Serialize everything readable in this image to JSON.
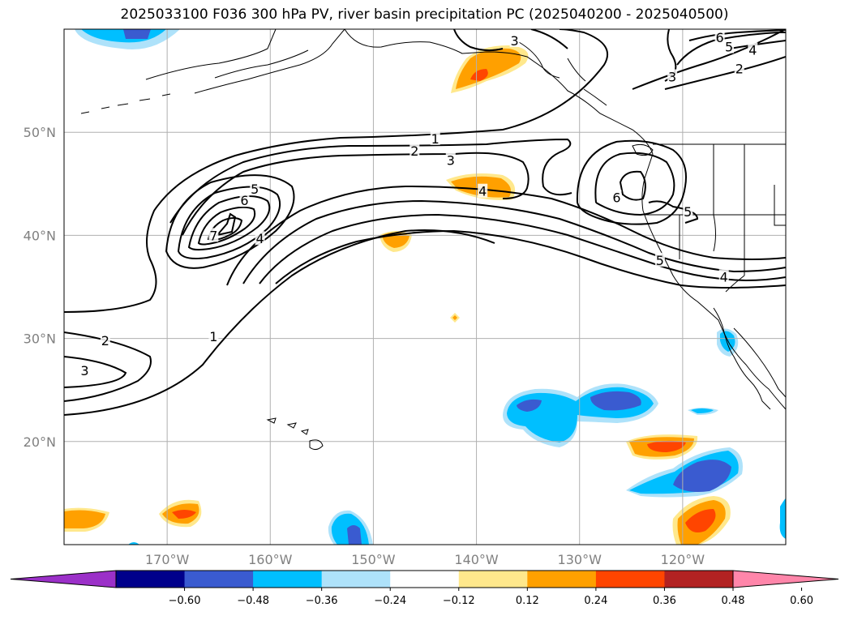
{
  "title": "2025033100 F036 300 hPa PV, river basin precipitation PC (2025040200 - 2025040500)",
  "map": {
    "lon_range": [
      -180,
      -110
    ],
    "lat_range": [
      10,
      60
    ],
    "lon_ticks": [
      {
        "value": -170,
        "label": "170°W"
      },
      {
        "value": -160,
        "label": "160°W"
      },
      {
        "value": -150,
        "label": "150°W"
      },
      {
        "value": -140,
        "label": "140°W"
      },
      {
        "value": -130,
        "label": "130°W"
      },
      {
        "value": -120,
        "label": "120°W"
      }
    ],
    "lat_ticks": [
      {
        "value": 20,
        "label": "20°N"
      },
      {
        "value": 30,
        "label": "30°N"
      },
      {
        "value": 40,
        "label": "40°N"
      },
      {
        "value": 50,
        "label": "50°N"
      }
    ],
    "grid": true
  },
  "colorbar": {
    "colors": [
      "#9b30c8",
      "#00008b",
      "#3a5bd0",
      "#00bfff",
      "#aee2fa",
      "#ffffff",
      "#ffe88c",
      "#ffa000",
      "#ff4500",
      "#b22222",
      "#ff86aa"
    ],
    "ticks": [
      "−0.60",
      "−0.48",
      "−0.36",
      "−0.24",
      "−0.12",
      "0.12",
      "0.24",
      "0.36",
      "0.48",
      "0.60"
    ],
    "extend": "both"
  },
  "contour_labels": [
    {
      "text": "1",
      "lon": -144,
      "lat": 49.4
    },
    {
      "text": "2",
      "lon": -146,
      "lat": 48.2
    },
    {
      "text": "3",
      "lon": -142.5,
      "lat": 47.3
    },
    {
      "text": "5",
      "lon": -161.5,
      "lat": 44.5
    },
    {
      "text": "6",
      "lon": -162.5,
      "lat": 43.4
    },
    {
      "text": "7",
      "lon": -165.5,
      "lat": 40
    },
    {
      "text": "4",
      "lon": -161,
      "lat": 39.7
    },
    {
      "text": "1",
      "lon": -165.5,
      "lat": 30.2
    },
    {
      "text": "2",
      "lon": -176,
      "lat": 29.8
    },
    {
      "text": "3",
      "lon": -178,
      "lat": 26.9
    },
    {
      "text": "4",
      "lon": -139.4,
      "lat": 44.3
    },
    {
      "text": "3",
      "lon": -121,
      "lat": 55.4
    },
    {
      "text": "2",
      "lon": -114.5,
      "lat": 56.2
    },
    {
      "text": "5",
      "lon": -115.5,
      "lat": 58.3
    },
    {
      "text": "4",
      "lon": -113.2,
      "lat": 58
    },
    {
      "text": "6",
      "lon": -116.4,
      "lat": 59.2
    },
    {
      "text": "3",
      "lon": -136.3,
      "lat": 58.9
    },
    {
      "text": "6",
      "lon": -126.4,
      "lat": 43.7
    },
    {
      "text": "5",
      "lon": -119.5,
      "lat": 42.3
    },
    {
      "text": "5",
      "lon": -122.2,
      "lat": 37.6
    },
    {
      "text": "4",
      "lon": -116,
      "lat": 36
    }
  ]
}
